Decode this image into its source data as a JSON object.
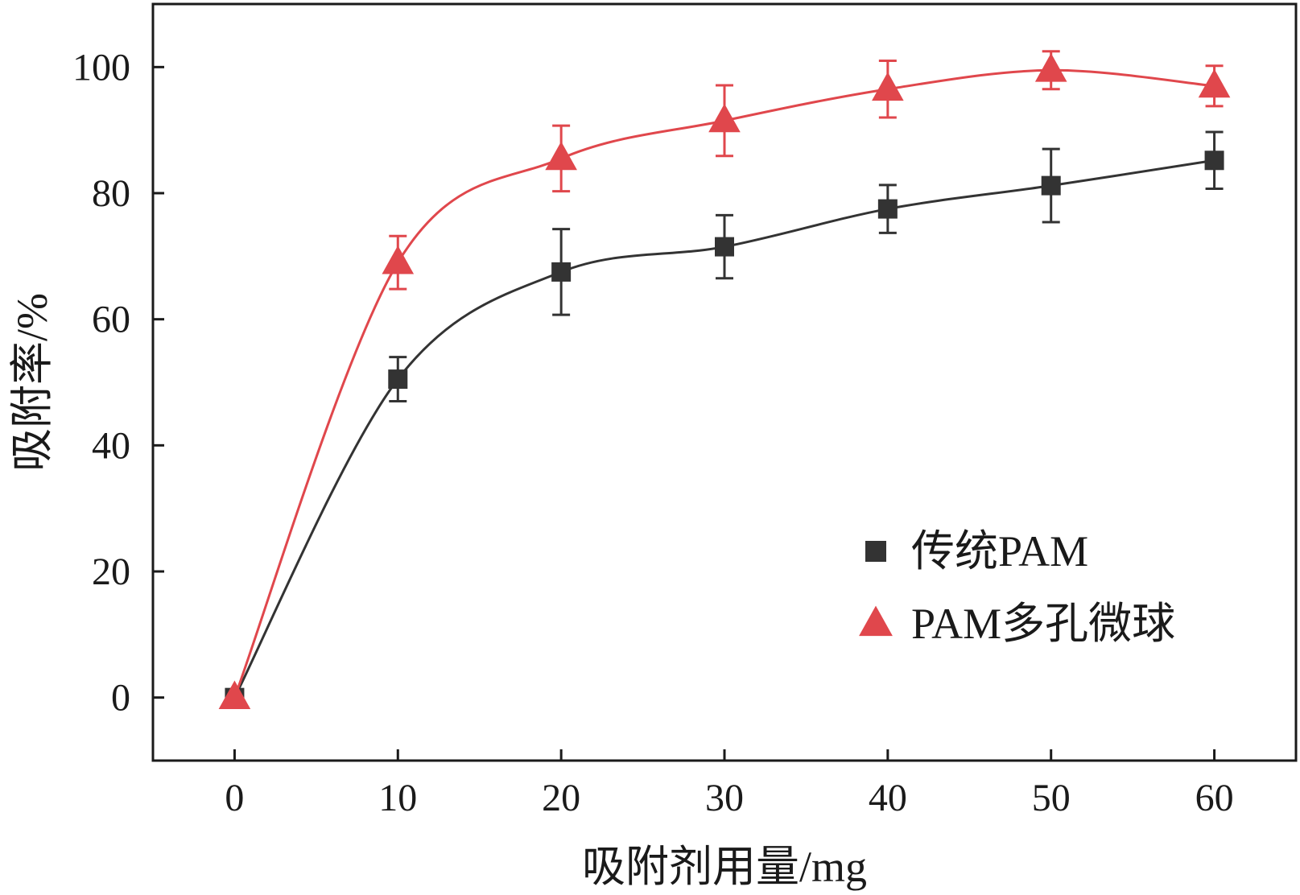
{
  "chart_data": {
    "type": "line",
    "title": "",
    "xlabel": "吸附剂用量/mg",
    "ylabel": "吸附率/%",
    "xlim": [
      -5,
      65
    ],
    "ylim": [
      -10,
      110
    ],
    "xticks": [
      0,
      10,
      20,
      30,
      40,
      50,
      60
    ],
    "yticks": [
      0,
      20,
      40,
      60,
      80,
      100
    ],
    "x": [
      0,
      10,
      20,
      30,
      40,
      50,
      60
    ],
    "legend_position": "center-right",
    "grid": false,
    "series": [
      {
        "name": "传统PAM",
        "marker": "square",
        "color": "#333333",
        "values": [
          0,
          50.5,
          67.5,
          71.5,
          77.5,
          81.2,
          85.2
        ],
        "errors": [
          0,
          3.5,
          6.8,
          5.0,
          3.8,
          5.8,
          4.5
        ]
      },
      {
        "name": "PAM多孔微球",
        "marker": "triangle",
        "color": "#e0474c",
        "values": [
          0,
          69,
          85.5,
          91.5,
          96.5,
          99.5,
          97
        ],
        "errors": [
          0,
          4.2,
          5.2,
          5.6,
          4.5,
          3.0,
          3.2
        ]
      }
    ]
  }
}
